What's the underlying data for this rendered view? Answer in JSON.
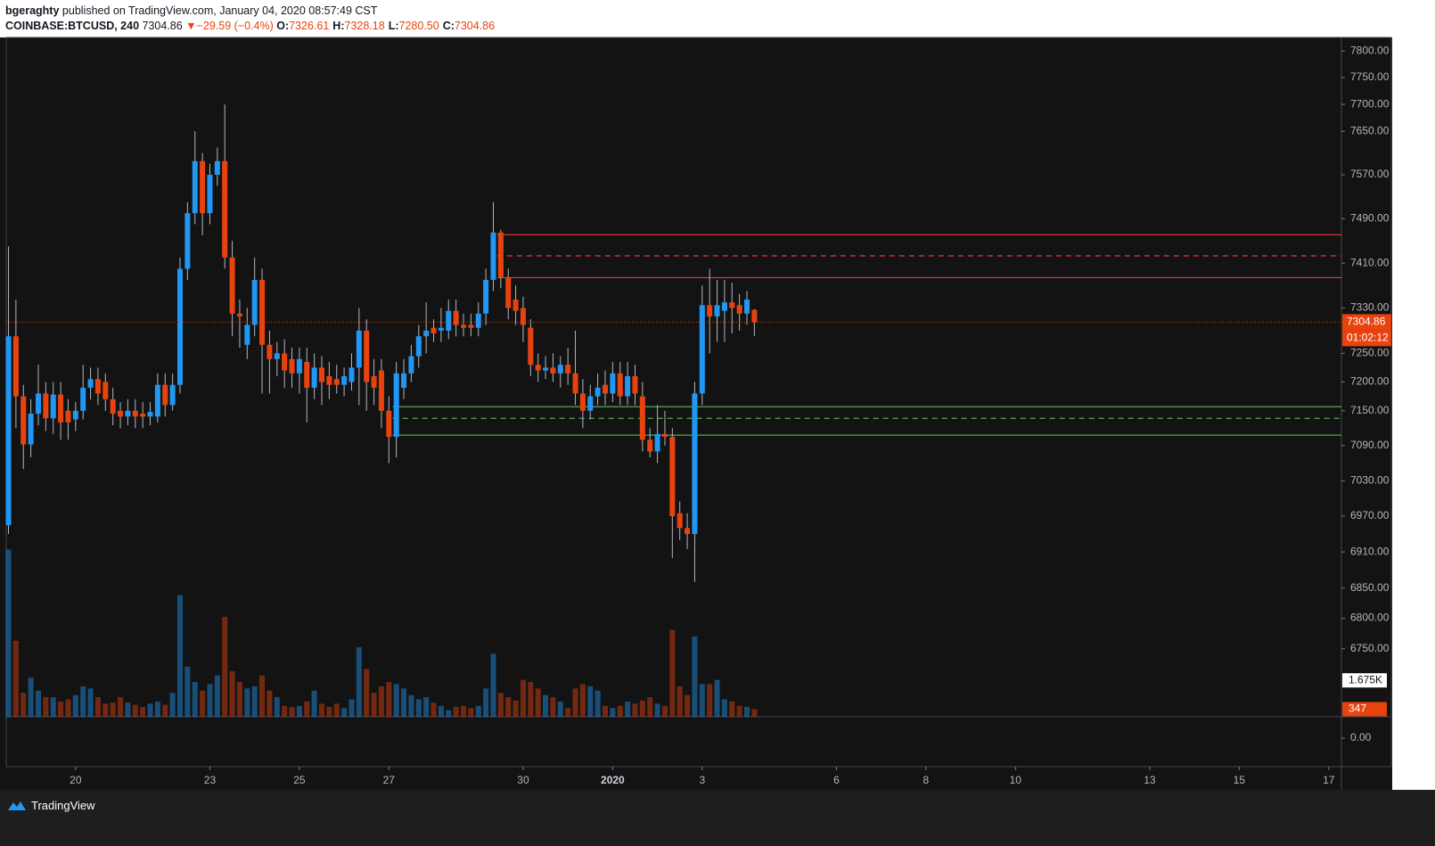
{
  "header": {
    "author": "bgeraghty",
    "published": "published on TradingView.com, January 04, 2020 08:57:49 CST",
    "symbol": "COINBASE:BTCUSD, 240",
    "price": "7304.86",
    "change": "−29.59 (−0.4%)",
    "ohlc": [
      {
        "label": "O:",
        "value": "7326.61"
      },
      {
        "label": "H:",
        "value": "7328.18"
      },
      {
        "label": "L:",
        "value": "7280.50"
      },
      {
        "label": "C:",
        "value": "7304.86"
      }
    ]
  },
  "footer": {
    "brand": "TradingView"
  },
  "chart_data": {
    "type": "candlestick",
    "log": true,
    "categories": [
      null,
      null,
      null,
      null,
      null,
      null,
      null,
      null,
      null,
      null,
      null,
      null,
      null,
      null,
      null,
      null,
      null,
      null,
      null,
      null,
      null,
      null,
      null,
      null,
      null,
      null,
      null,
      null,
      null,
      null,
      null,
      null,
      null,
      null,
      null,
      null,
      null,
      null,
      null,
      null,
      null,
      null,
      null,
      null,
      null,
      null,
      null,
      null,
      null,
      null,
      null,
      null,
      null,
      null,
      null,
      null,
      null,
      null,
      null,
      null,
      null,
      null,
      null,
      null,
      null,
      null,
      null,
      null,
      null,
      null,
      null,
      null,
      null,
      null,
      null,
      null,
      null,
      null,
      null,
      null,
      null,
      null,
      null,
      null,
      null,
      null,
      null,
      null,
      null,
      null,
      null,
      null,
      null,
      null,
      null,
      null,
      null,
      null,
      null,
      null,
      null
    ],
    "open": [
      6955,
      7280,
      7175,
      7092,
      7145,
      7180,
      7137,
      7178,
      7150,
      7135,
      7150,
      7190,
      7205,
      7200,
      7170,
      7150,
      7140,
      7150,
      7145,
      7140,
      7140,
      7195,
      7160,
      7195,
      7400,
      7500,
      7595,
      7500,
      7570,
      7595,
      7420,
      7320,
      7265,
      7300,
      7380,
      7265,
      7240,
      7250,
      7240,
      7215,
      7235,
      7190,
      7225,
      7210,
      7205,
      7195,
      7200,
      7225,
      7290,
      7210,
      7220,
      7150,
      7105,
      7190,
      7215,
      7245,
      7280,
      7295,
      7290,
      7290,
      7325,
      7300,
      7300,
      7295,
      7320,
      7380,
      7465,
      7385,
      7345,
      7330,
      7295,
      7230,
      7220,
      7225,
      7215,
      7230,
      7215,
      7180,
      7150,
      7175,
      7195,
      7180,
      7215,
      7175,
      7210,
      7175,
      7100,
      7080,
      7110,
      7105,
      6975,
      6950,
      6940,
      7180,
      7335,
      7315,
      7325,
      7340,
      7335,
      7320,
      7326.61
    ],
    "high": [
      7440,
      7345,
      7195,
      7170,
      7230,
      7200,
      7200,
      7200,
      7170,
      7165,
      7230,
      7225,
      7225,
      7215,
      7190,
      7165,
      7170,
      7170,
      7165,
      7165,
      7215,
      7215,
      7215,
      7420,
      7520,
      7650,
      7610,
      7590,
      7620,
      7700,
      7450,
      7345,
      7330,
      7420,
      7400,
      7290,
      7270,
      7275,
      7260,
      7260,
      7260,
      7250,
      7245,
      7235,
      7230,
      7225,
      7250,
      7330,
      7310,
      7240,
      7240,
      7175,
      7235,
      7240,
      7265,
      7300,
      7340,
      7310,
      7330,
      7345,
      7345,
      7320,
      7320,
      7340,
      7400,
      7520,
      7470,
      7400,
      7370,
      7350,
      7310,
      7250,
      7245,
      7250,
      7245,
      7260,
      7290,
      7205,
      7195,
      7215,
      7220,
      7235,
      7235,
      7235,
      7230,
      7200,
      7120,
      7160,
      7150,
      7120,
      6995,
      6975,
      7200,
      7370,
      7400,
      7380,
      7380,
      7375,
      7355,
      7360,
      7328.18
    ],
    "low": [
      6940,
      7120,
      7050,
      7070,
      7125,
      7115,
      7110,
      7100,
      7100,
      7115,
      7135,
      7170,
      7160,
      7150,
      7125,
      7120,
      7125,
      7120,
      7120,
      7125,
      7130,
      7140,
      7150,
      7180,
      7380,
      7480,
      7460,
      7480,
      7550,
      7400,
      7280,
      7260,
      7240,
      7280,
      7180,
      7180,
      7210,
      7190,
      7190,
      7180,
      7130,
      7170,
      7160,
      7170,
      7180,
      7175,
      7185,
      7160,
      7150,
      7160,
      7120,
      7060,
      7070,
      7170,
      7200,
      7225,
      7250,
      7270,
      7270,
      7275,
      7280,
      7280,
      7280,
      7280,
      7300,
      7360,
      7365,
      7310,
      7300,
      7270,
      7210,
      7200,
      7205,
      7200,
      7190,
      7195,
      7160,
      7120,
      7135,
      7160,
      7160,
      7165,
      7160,
      7160,
      7160,
      7080,
      7070,
      7060,
      7090,
      6900,
      6930,
      6915,
      6860,
      7160,
      7250,
      7270,
      7270,
      7285,
      7290,
      7300,
      7280.5
    ],
    "close": [
      7280,
      7175,
      7092,
      7145,
      7180,
      7137,
      7178,
      7130,
      7130,
      7150,
      7190,
      7205,
      7180,
      7170,
      7145,
      7140,
      7150,
      7140,
      7140,
      7148,
      7195,
      7160,
      7195,
      7400,
      7500,
      7595,
      7500,
      7570,
      7595,
      7420,
      7320,
      7315,
      7300,
      7380,
      7265,
      7240,
      7250,
      7220,
      7215,
      7240,
      7190,
      7225,
      7200,
      7195,
      7195,
      7210,
      7225,
      7290,
      7200,
      7190,
      7150,
      7105,
      7215,
      7215,
      7245,
      7280,
      7290,
      7285,
      7295,
      7325,
      7300,
      7295,
      7295,
      7320,
      7380,
      7465,
      7385,
      7330,
      7325,
      7300,
      7230,
      7220,
      7225,
      7215,
      7230,
      7215,
      7180,
      7150,
      7175,
      7190,
      7180,
      7215,
      7175,
      7210,
      7180,
      7100,
      7080,
      7110,
      7105,
      6970,
      6950,
      6940,
      7180,
      7335,
      7315,
      7335,
      7340,
      7330,
      7320,
      7345,
      7304.86
    ],
    "volume": [
      7700,
      3500,
      1100,
      1800,
      1200,
      900,
      900,
      700,
      800,
      1000,
      1400,
      1300,
      900,
      600,
      650,
      900,
      650,
      550,
      450,
      600,
      700,
      550,
      1100,
      5600,
      2300,
      1600,
      1200,
      1500,
      1900,
      4600,
      2100,
      1600,
      1300,
      1400,
      1900,
      1200,
      900,
      500,
      450,
      500,
      700,
      1200,
      600,
      450,
      600,
      400,
      800,
      3200,
      2200,
      1100,
      1400,
      1600,
      1500,
      1300,
      1000,
      800,
      900,
      650,
      500,
      300,
      450,
      500,
      400,
      500,
      1300,
      2900,
      1100,
      900,
      750,
      1700,
      1600,
      1300,
      1000,
      900,
      700,
      400,
      1300,
      1500,
      1400,
      1200,
      500,
      400,
      500,
      700,
      600,
      750,
      900,
      600,
      500,
      4000,
      1400,
      1000,
      3700,
      1500,
      1500,
      1700,
      800,
      700,
      500,
      450,
      347
    ],
    "up_color": "#2196f3",
    "down_color": "#e8430f",
    "xlim": [
      -0.3,
      178.7
    ],
    "xticks": [
      {
        "value": 9,
        "label": "20"
      },
      {
        "value": 27,
        "label": "23"
      },
      {
        "value": 39,
        "label": "25"
      },
      {
        "value": 51,
        "label": "27"
      },
      {
        "value": 69,
        "label": "30"
      },
      {
        "value": 81,
        "label": "2020"
      },
      {
        "value": 93,
        "label": "3"
      },
      {
        "value": 111,
        "label": "6"
      },
      {
        "value": 123,
        "label": "8"
      },
      {
        "value": 135,
        "label": "10"
      },
      {
        "value": 153,
        "label": "13"
      },
      {
        "value": 165,
        "label": "15"
      },
      {
        "value": 177,
        "label": "17"
      }
    ],
    "ylim": [
      6640,
      7824
    ],
    "yticks": [
      {
        "value": 7800,
        "label": "7800.00"
      },
      {
        "value": 7750,
        "label": "7750.00"
      },
      {
        "value": 7700,
        "label": "7700.00"
      },
      {
        "value": 7650,
        "label": "7650.00"
      },
      {
        "value": 7570,
        "label": "7570.00"
      },
      {
        "value": 7490,
        "label": "7490.00"
      },
      {
        "value": 7410,
        "label": "7410.00"
      },
      {
        "value": 7330,
        "label": "7330.00"
      },
      {
        "value": 7250,
        "label": "7250.00"
      },
      {
        "value": 7200,
        "label": "7200.00"
      },
      {
        "value": 7150,
        "label": "7150.00"
      },
      {
        "value": 7090,
        "label": "7090.00"
      },
      {
        "value": 7030,
        "label": "7030.00"
      },
      {
        "value": 6970,
        "label": "6970.00"
      },
      {
        "value": 6910,
        "label": "6910.00"
      },
      {
        "value": 6850,
        "label": "6850.00"
      },
      {
        "value": 6800,
        "label": "6800.00"
      },
      {
        "value": 6750,
        "label": "6750.00"
      }
    ],
    "volume_ylim": [
      0,
      7800
    ],
    "volume_labels": [
      {
        "value": 1675,
        "label": "1.675K"
      },
      347
    ],
    "last_price": {
      "value": 7304.86,
      "label": "7304.86",
      "countdown": "01:02:12"
    },
    "levels": [
      {
        "value": 7461,
        "color": "#f23645",
        "dashed": false,
        "from": 66
      },
      {
        "value": 7423,
        "color": "#f23645",
        "dashed": true,
        "from": 66
      },
      {
        "value": 7384,
        "color": "#f23645",
        "dashed": false,
        "from": 66
      },
      {
        "value": 7157,
        "color": "#4caf50",
        "dashed": false,
        "from": 52
      },
      {
        "value": 7137,
        "color": "#4caf50",
        "dashed": true,
        "from": 52
      },
      {
        "value": 7108,
        "color": "#4caf50",
        "dashed": false,
        "from": 52
      }
    ],
    "lower_pane_ticks": [
      {
        "value": 0,
        "label": "0.00"
      }
    ]
  }
}
